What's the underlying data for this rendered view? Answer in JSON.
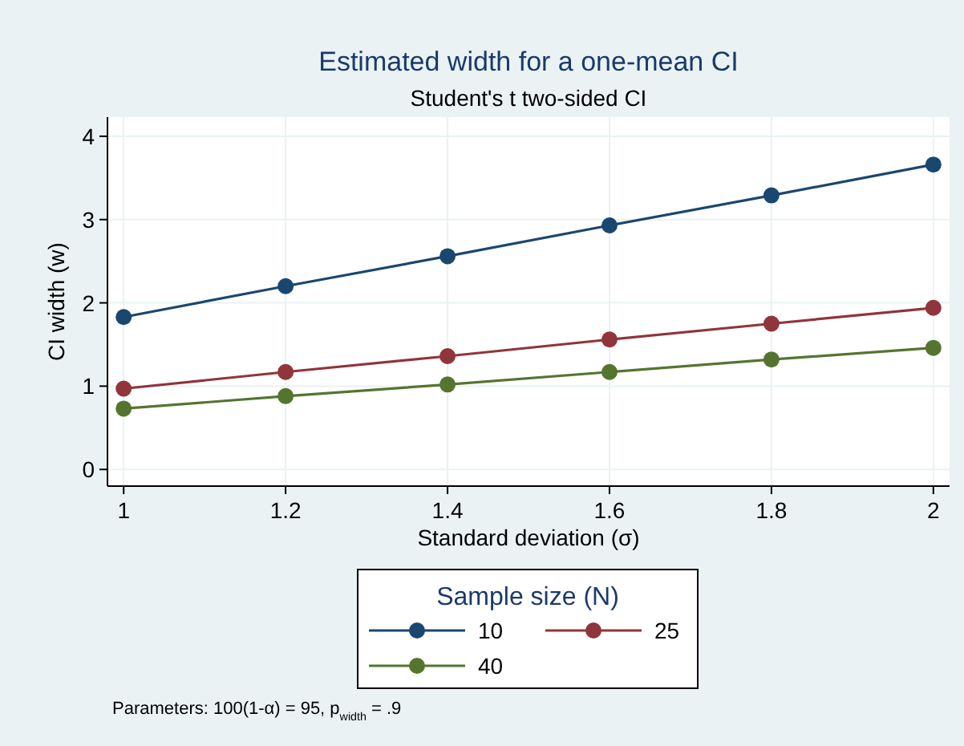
{
  "chart_data": {
    "type": "line",
    "title": "Estimated width for a one-mean CI",
    "subtitle": "Student's t two-sided CI",
    "xlabel": "Standard deviation (σ)",
    "ylabel": "CI width (w)",
    "legend_title": "Sample size (N)",
    "annotations": [
      "Parameters: 100(1-α) = 95, p$_{width}$ = .9"
    ],
    "x": [
      1,
      1.2,
      1.4,
      1.6,
      1.8,
      2
    ],
    "series": [
      {
        "name": "10",
        "color": "#1a476f",
        "values": [
          1.83,
          2.2,
          2.56,
          2.93,
          3.29,
          3.66
        ]
      },
      {
        "name": "25",
        "color": "#90353b",
        "values": [
          0.97,
          1.17,
          1.36,
          1.56,
          1.75,
          1.94
        ]
      },
      {
        "name": "40",
        "color": "#55752f",
        "values": [
          0.73,
          0.88,
          1.02,
          1.17,
          1.32,
          1.46
        ]
      }
    ],
    "xlim": [
      0.98,
      2.02
    ],
    "ylim": [
      -0.2,
      4.23
    ],
    "xticks": [
      1,
      1.2,
      1.4,
      1.6,
      1.8,
      2
    ],
    "yticks": [
      0,
      1,
      2,
      3,
      4
    ],
    "grid": true,
    "legend": "bottom",
    "marker": "circle",
    "line_style": "solid"
  }
}
